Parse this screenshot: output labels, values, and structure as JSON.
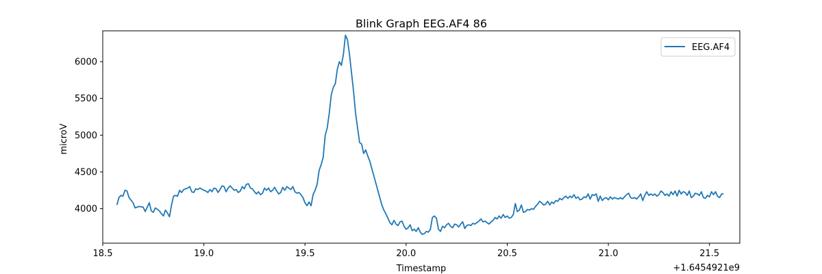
{
  "chart_data": {
    "type": "line",
    "title": "Blink Graph EEG.AF4 86",
    "xlabel": "Timestamp",
    "ylabel": "microV",
    "x_offset_label": "+1.6454921e9",
    "xlim": [
      18.5,
      21.65
    ],
    "ylim": [
      3530,
      6420
    ],
    "xticks": [
      18.5,
      19.0,
      19.5,
      20.0,
      20.5,
      21.0,
      21.5
    ],
    "xtick_labels": [
      "18.5",
      "19.0",
      "19.5",
      "20.0",
      "20.5",
      "21.0",
      "21.5"
    ],
    "yticks": [
      4000,
      4500,
      5000,
      5500,
      6000
    ],
    "ytick_labels": [
      "4000",
      "4500",
      "5000",
      "5500",
      "6000"
    ],
    "legend_position": "top-right",
    "grid": false,
    "series": [
      {
        "name": "EEG.AF4",
        "color": "#1f77b4",
        "points": [
          [
            18.57,
            4050
          ],
          [
            18.58,
            4150
          ],
          [
            18.59,
            4180
          ],
          [
            18.6,
            4170
          ],
          [
            18.61,
            4250
          ],
          [
            18.62,
            4240
          ],
          [
            18.63,
            4150
          ],
          [
            18.65,
            4080
          ],
          [
            18.66,
            4010
          ],
          [
            18.68,
            4030
          ],
          [
            18.7,
            4020
          ],
          [
            18.71,
            3960
          ],
          [
            18.73,
            4080
          ],
          [
            18.74,
            3970
          ],
          [
            18.75,
            3950
          ],
          [
            18.76,
            4010
          ],
          [
            18.78,
            3970
          ],
          [
            18.79,
            3930
          ],
          [
            18.8,
            3900
          ],
          [
            18.81,
            3980
          ],
          [
            18.82,
            3940
          ],
          [
            18.83,
            3890
          ],
          [
            18.84,
            4050
          ],
          [
            18.85,
            4170
          ],
          [
            18.86,
            4180
          ],
          [
            18.87,
            4170
          ],
          [
            18.88,
            4250
          ],
          [
            18.89,
            4220
          ],
          [
            18.9,
            4260
          ],
          [
            18.91,
            4270
          ],
          [
            18.92,
            4280
          ],
          [
            18.93,
            4300
          ],
          [
            18.94,
            4230
          ],
          [
            18.95,
            4220
          ],
          [
            18.96,
            4270
          ],
          [
            18.97,
            4260
          ],
          [
            18.98,
            4280
          ],
          [
            19.0,
            4250
          ],
          [
            19.01,
            4240
          ],
          [
            19.02,
            4220
          ],
          [
            19.03,
            4260
          ],
          [
            19.04,
            4230
          ],
          [
            19.05,
            4280
          ],
          [
            19.06,
            4270
          ],
          [
            19.07,
            4220
          ],
          [
            19.08,
            4260
          ],
          [
            19.09,
            4310
          ],
          [
            19.1,
            4300
          ],
          [
            19.11,
            4230
          ],
          [
            19.12,
            4280
          ],
          [
            19.13,
            4310
          ],
          [
            19.14,
            4280
          ],
          [
            19.15,
            4250
          ],
          [
            19.16,
            4260
          ],
          [
            19.17,
            4220
          ],
          [
            19.18,
            4240
          ],
          [
            19.19,
            4300
          ],
          [
            19.2,
            4270
          ],
          [
            19.21,
            4330
          ],
          [
            19.22,
            4340
          ],
          [
            19.23,
            4280
          ],
          [
            19.24,
            4270
          ],
          [
            19.25,
            4230
          ],
          [
            19.26,
            4200
          ],
          [
            19.27,
            4230
          ],
          [
            19.28,
            4190
          ],
          [
            19.29,
            4210
          ],
          [
            19.3,
            4280
          ],
          [
            19.31,
            4250
          ],
          [
            19.32,
            4280
          ],
          [
            19.33,
            4230
          ],
          [
            19.34,
            4250
          ],
          [
            19.35,
            4290
          ],
          [
            19.36,
            4240
          ],
          [
            19.37,
            4200
          ],
          [
            19.38,
            4220
          ],
          [
            19.39,
            4290
          ],
          [
            19.4,
            4250
          ],
          [
            19.41,
            4300
          ],
          [
            19.42,
            4280
          ],
          [
            19.43,
            4260
          ],
          [
            19.44,
            4300
          ],
          [
            19.45,
            4230
          ],
          [
            19.46,
            4210
          ],
          [
            19.47,
            4220
          ],
          [
            19.48,
            4190
          ],
          [
            19.49,
            4150
          ],
          [
            19.5,
            4080
          ],
          [
            19.51,
            4040
          ],
          [
            19.52,
            4090
          ],
          [
            19.53,
            4040
          ],
          [
            19.54,
            4190
          ],
          [
            19.55,
            4250
          ],
          [
            19.56,
            4330
          ],
          [
            19.57,
            4520
          ],
          [
            19.58,
            4600
          ],
          [
            19.59,
            4700
          ],
          [
            19.6,
            5000
          ],
          [
            19.61,
            5100
          ],
          [
            19.62,
            5300
          ],
          [
            19.63,
            5550
          ],
          [
            19.64,
            5650
          ],
          [
            19.65,
            5700
          ],
          [
            19.66,
            5900
          ],
          [
            19.67,
            6000
          ],
          [
            19.68,
            5950
          ],
          [
            19.69,
            6100
          ],
          [
            19.7,
            6360
          ],
          [
            19.71,
            6300
          ],
          [
            19.72,
            6100
          ],
          [
            19.73,
            5850
          ],
          [
            19.74,
            5600
          ],
          [
            19.75,
            5300
          ],
          [
            19.76,
            5100
          ],
          [
            19.77,
            4900
          ],
          [
            19.78,
            4880
          ],
          [
            19.79,
            4750
          ],
          [
            19.8,
            4800
          ],
          [
            19.81,
            4720
          ],
          [
            19.82,
            4650
          ],
          [
            19.83,
            4550
          ],
          [
            19.84,
            4450
          ],
          [
            19.85,
            4350
          ],
          [
            19.86,
            4250
          ],
          [
            19.87,
            4150
          ],
          [
            19.88,
            4050
          ],
          [
            19.89,
            3980
          ],
          [
            19.9,
            3930
          ],
          [
            19.91,
            3870
          ],
          [
            19.92,
            3810
          ],
          [
            19.93,
            3780
          ],
          [
            19.94,
            3840
          ],
          [
            19.95,
            3790
          ],
          [
            19.96,
            3770
          ],
          [
            19.97,
            3820
          ],
          [
            19.98,
            3830
          ],
          [
            19.99,
            3760
          ],
          [
            20.0,
            3720
          ],
          [
            20.01,
            3740
          ],
          [
            20.02,
            3780
          ],
          [
            20.03,
            3700
          ],
          [
            20.04,
            3720
          ],
          [
            20.05,
            3690
          ],
          [
            20.06,
            3740
          ],
          [
            20.07,
            3680
          ],
          [
            20.08,
            3650
          ],
          [
            20.09,
            3660
          ],
          [
            20.1,
            3690
          ],
          [
            20.11,
            3680
          ],
          [
            20.12,
            3720
          ],
          [
            20.13,
            3880
          ],
          [
            20.14,
            3900
          ],
          [
            20.15,
            3870
          ],
          [
            20.16,
            3720
          ],
          [
            20.17,
            3690
          ],
          [
            20.18,
            3760
          ],
          [
            20.19,
            3740
          ],
          [
            20.2,
            3780
          ],
          [
            20.21,
            3800
          ],
          [
            20.22,
            3760
          ],
          [
            20.23,
            3740
          ],
          [
            20.24,
            3790
          ],
          [
            20.25,
            3780
          ],
          [
            20.26,
            3750
          ],
          [
            20.27,
            3790
          ],
          [
            20.28,
            3820
          ],
          [
            20.29,
            3730
          ],
          [
            20.3,
            3770
          ],
          [
            20.31,
            3780
          ],
          [
            20.32,
            3770
          ],
          [
            20.33,
            3800
          ],
          [
            20.34,
            3790
          ],
          [
            20.35,
            3810
          ],
          [
            20.36,
            3830
          ],
          [
            20.37,
            3860
          ],
          [
            20.38,
            3820
          ],
          [
            20.39,
            3830
          ],
          [
            20.4,
            3810
          ],
          [
            20.41,
            3790
          ],
          [
            20.42,
            3820
          ],
          [
            20.43,
            3840
          ],
          [
            20.44,
            3880
          ],
          [
            20.45,
            3860
          ],
          [
            20.46,
            3900
          ],
          [
            20.47,
            3870
          ],
          [
            20.48,
            3920
          ],
          [
            20.49,
            3880
          ],
          [
            20.5,
            3900
          ],
          [
            20.51,
            3870
          ],
          [
            20.52,
            3880
          ],
          [
            20.53,
            3920
          ],
          [
            20.54,
            4070
          ],
          [
            20.55,
            3960
          ],
          [
            20.56,
            3980
          ],
          [
            20.57,
            4050
          ],
          [
            20.58,
            3950
          ],
          [
            20.59,
            3960
          ],
          [
            20.6,
            3990
          ],
          [
            20.61,
            3980
          ],
          [
            20.62,
            4000
          ],
          [
            20.63,
            3990
          ],
          [
            20.64,
            4030
          ],
          [
            20.65,
            4060
          ],
          [
            20.66,
            4100
          ],
          [
            20.67,
            4080
          ],
          [
            20.68,
            4050
          ],
          [
            20.69,
            4060
          ],
          [
            20.7,
            4100
          ],
          [
            20.71,
            4050
          ],
          [
            20.72,
            4090
          ],
          [
            20.73,
            4070
          ],
          [
            20.74,
            4110
          ],
          [
            20.75,
            4100
          ],
          [
            20.76,
            4140
          ],
          [
            20.77,
            4120
          ],
          [
            20.78,
            4150
          ],
          [
            20.79,
            4170
          ],
          [
            20.8,
            4140
          ],
          [
            20.81,
            4170
          ],
          [
            20.82,
            4150
          ],
          [
            20.83,
            4190
          ],
          [
            20.84,
            4140
          ],
          [
            20.85,
            4160
          ],
          [
            20.86,
            4120
          ],
          [
            20.87,
            4130
          ],
          [
            20.88,
            4160
          ],
          [
            20.89,
            4150
          ],
          [
            20.9,
            4200
          ],
          [
            20.91,
            4130
          ],
          [
            20.92,
            4190
          ],
          [
            20.93,
            4180
          ],
          [
            20.94,
            4200
          ],
          [
            20.95,
            4100
          ],
          [
            20.96,
            4170
          ],
          [
            20.97,
            4110
          ],
          [
            20.98,
            4140
          ],
          [
            20.99,
            4150
          ],
          [
            21.0,
            4120
          ],
          [
            21.01,
            4160
          ],
          [
            21.02,
            4130
          ],
          [
            21.03,
            4150
          ],
          [
            21.04,
            4140
          ],
          [
            21.05,
            4130
          ],
          [
            21.06,
            4150
          ],
          [
            21.07,
            4130
          ],
          [
            21.08,
            4160
          ],
          [
            21.09,
            4190
          ],
          [
            21.1,
            4210
          ],
          [
            21.11,
            4150
          ],
          [
            21.12,
            4140
          ],
          [
            21.13,
            4150
          ],
          [
            21.14,
            4130
          ],
          [
            21.15,
            4160
          ],
          [
            21.16,
            4200
          ],
          [
            21.17,
            4110
          ],
          [
            21.18,
            4180
          ],
          [
            21.19,
            4230
          ],
          [
            21.2,
            4180
          ],
          [
            21.21,
            4200
          ],
          [
            21.22,
            4180
          ],
          [
            21.23,
            4200
          ],
          [
            21.24,
            4170
          ],
          [
            21.25,
            4190
          ],
          [
            21.26,
            4240
          ],
          [
            21.27,
            4220
          ],
          [
            21.28,
            4180
          ],
          [
            21.29,
            4200
          ],
          [
            21.3,
            4170
          ],
          [
            21.31,
            4230
          ],
          [
            21.32,
            4190
          ],
          [
            21.33,
            4240
          ],
          [
            21.34,
            4170
          ],
          [
            21.35,
            4250
          ],
          [
            21.36,
            4200
          ],
          [
            21.37,
            4230
          ],
          [
            21.38,
            4220
          ],
          [
            21.39,
            4180
          ],
          [
            21.4,
            4240
          ],
          [
            21.41,
            4150
          ],
          [
            21.42,
            4170
          ],
          [
            21.43,
            4210
          ],
          [
            21.44,
            4200
          ],
          [
            21.45,
            4180
          ],
          [
            21.46,
            4230
          ],
          [
            21.47,
            4150
          ],
          [
            21.48,
            4140
          ],
          [
            21.49,
            4180
          ],
          [
            21.5,
            4160
          ],
          [
            21.51,
            4230
          ],
          [
            21.52,
            4190
          ],
          [
            21.53,
            4230
          ],
          [
            21.54,
            4170
          ],
          [
            21.55,
            4150
          ],
          [
            21.56,
            4200
          ],
          [
            21.57,
            4200
          ]
        ]
      }
    ]
  }
}
